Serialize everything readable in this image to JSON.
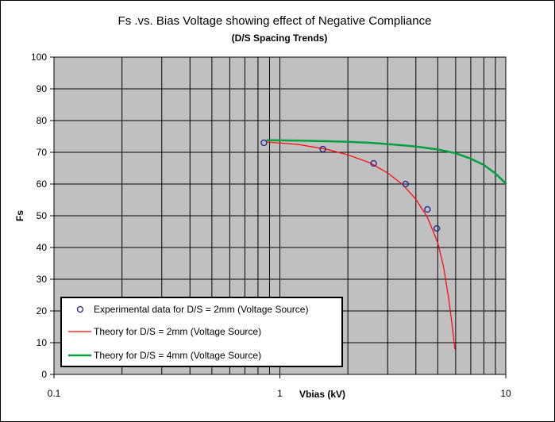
{
  "chart_data": {
    "type": "scatter",
    "title": "Fs .vs. Bias Voltage showing effect of Negative Compliance",
    "subtitle": "(D/S Spacing Trends)",
    "xlabel": "Vbias (kV)",
    "ylabel": "Fs",
    "x_scale": "log",
    "xlim": [
      0.1,
      10
    ],
    "ylim": [
      0,
      100
    ],
    "x_ticks": [
      "0.1",
      "1",
      "10"
    ],
    "y_ticks": [
      "0",
      "10",
      "20",
      "30",
      "40",
      "50",
      "60",
      "70",
      "80",
      "90",
      "100"
    ],
    "grid": true,
    "legend_position": "bottom-left",
    "colors": {
      "plot_background": "#c0c0c0",
      "experimental": "#1f1f8f",
      "theory_2mm": "#ff0000",
      "theory_4mm": "#00a040"
    },
    "series": [
      {
        "name": "Experimental data for D/S = 2mm (Voltage Source)",
        "kind": "markers",
        "x": [
          0.85,
          1.55,
          2.6,
          3.6,
          4.5,
          4.95
        ],
        "y": [
          73,
          71,
          66.5,
          60,
          52,
          46
        ]
      },
      {
        "name": "Theory for D/S = 2mm (Voltage Source)",
        "kind": "line",
        "x": [
          0.88,
          1.2,
          1.6,
          2.0,
          2.5,
          3.0,
          3.5,
          4.0,
          4.5,
          5.0,
          5.3,
          5.6,
          5.8,
          5.95
        ],
        "y": [
          73.2,
          72.5,
          71,
          69.2,
          66.7,
          63.5,
          59.8,
          55.2,
          49.5,
          41.5,
          34,
          23.5,
          15,
          8
        ]
      },
      {
        "name": "Theory for D/S = 4mm (Voltage Source)",
        "kind": "line",
        "x": [
          0.88,
          1.2,
          1.6,
          2.0,
          2.5,
          3.0,
          3.5,
          4.0,
          5.0,
          6.0,
          7.0,
          8.0,
          9.0,
          10.0
        ],
        "y": [
          73.8,
          73.7,
          73.5,
          73.3,
          73.0,
          72.6,
          72.2,
          71.8,
          70.9,
          69.7,
          68.0,
          66.0,
          63.3,
          60.2
        ]
      }
    ]
  }
}
